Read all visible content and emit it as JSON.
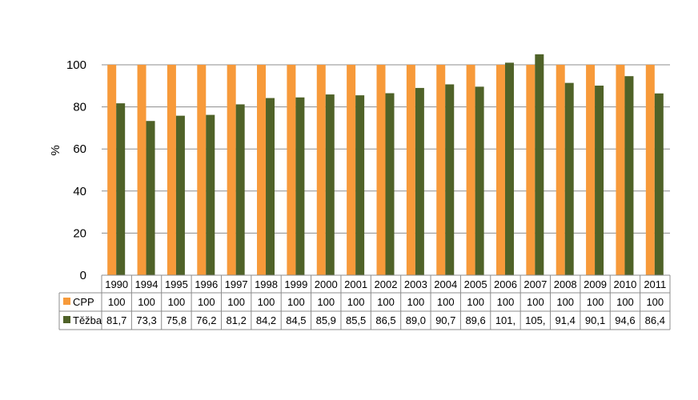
{
  "colors": {
    "cpp": "#F79A3A",
    "tezba": "#4F6228",
    "grid": "#8C8C8C",
    "table_border": "#8C8C8C"
  },
  "chart_data": {
    "type": "bar",
    "title": "",
    "xlabel": "",
    "ylabel": "%",
    "ylim": [
      0,
      100
    ],
    "yticks": [
      0,
      20,
      40,
      60,
      80,
      100
    ],
    "grid": true,
    "legend": "data-table",
    "categories": [
      "1990",
      "1994",
      "1995",
      "1996",
      "1997",
      "1998",
      "1999",
      "2000",
      "2001",
      "2002",
      "2003",
      "2004",
      "2005",
      "2006",
      "2007",
      "2008",
      "2009",
      "2010",
      "2011"
    ],
    "series": [
      {
        "name": "CPP",
        "color": "#F79A3A",
        "values": [
          100,
          100,
          100,
          100,
          100,
          100,
          100,
          100,
          100,
          100,
          100,
          100,
          100,
          100,
          100,
          100,
          100,
          100,
          100
        ],
        "labels": [
          "100",
          "100",
          "100",
          "100",
          "100",
          "100",
          "100",
          "100",
          "100",
          "100",
          "100",
          "100",
          "100",
          "100",
          "100",
          "100",
          "100",
          "100",
          "100"
        ]
      },
      {
        "name": "Těžba",
        "color": "#4F6228",
        "values": [
          81.7,
          73.3,
          75.8,
          76.2,
          81.2,
          84.2,
          84.5,
          85.9,
          85.5,
          86.5,
          89.0,
          90.7,
          89.6,
          101,
          105,
          91.4,
          90.1,
          94.6,
          86.4
        ],
        "labels": [
          "81,7",
          "73,3",
          "75,8",
          "76,2",
          "81,2",
          "84,2",
          "84,5",
          "85,9",
          "85,5",
          "86,5",
          "89,0",
          "90,7",
          "89,6",
          "101,",
          "105,",
          "91,4",
          "90,1",
          "94,6",
          "86,4"
        ]
      }
    ]
  }
}
